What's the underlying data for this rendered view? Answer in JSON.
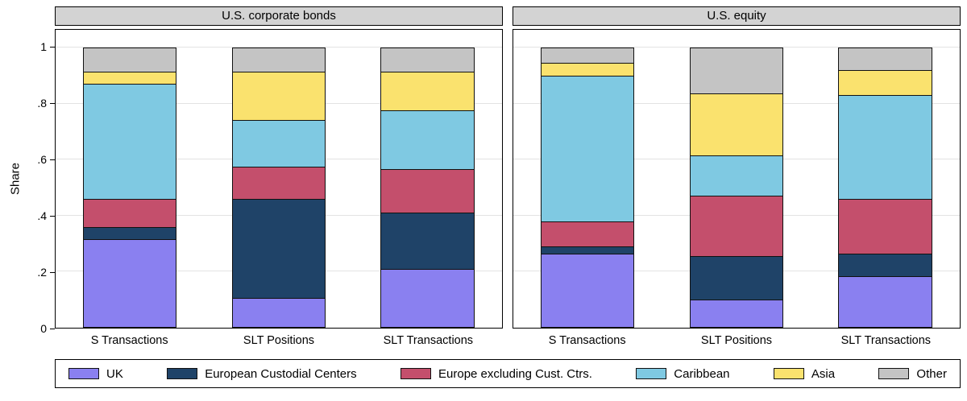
{
  "chart_data": {
    "type": "bar",
    "stacked": true,
    "title": "",
    "ylabel": "Share",
    "xlabel": "",
    "ylim": [
      0,
      1
    ],
    "grid": true,
    "yticks": [
      "0",
      ".2",
      ".4",
      ".6",
      ".8",
      "1"
    ],
    "ytick_values": [
      0,
      0.2,
      0.4,
      0.6,
      0.8,
      1
    ],
    "categories": [
      "S Transactions",
      "SLT Positions",
      "SLT Transactions"
    ],
    "series_names": [
      "UK",
      "European Custodial Centers",
      "Europe excluding Cust. Ctrs.",
      "Caribbean",
      "Asia",
      "Other"
    ],
    "colors": [
      "#8a80f0",
      "#1f4368",
      "#c44f6c",
      "#7fc9e2",
      "#fae26e",
      "#c4c4c4"
    ],
    "panels": [
      {
        "title": "U.S. corporate bonds",
        "series": [
          {
            "name": "UK",
            "values": [
              0.315,
              0.105,
              0.21
            ]
          },
          {
            "name": "European Custodial Centers",
            "values": [
              0.045,
              0.355,
              0.2
            ]
          },
          {
            "name": "Europe excluding Cust. Ctrs.",
            "values": [
              0.1,
              0.115,
              0.155
            ]
          },
          {
            "name": "Caribbean",
            "values": [
              0.41,
              0.165,
              0.21
            ]
          },
          {
            "name": "Asia",
            "values": [
              0.045,
              0.175,
              0.14
            ]
          },
          {
            "name": "Other",
            "values": [
              0.085,
              0.085,
              0.085
            ]
          }
        ]
      },
      {
        "title": "U.S. equity",
        "series": [
          {
            "name": "UK",
            "values": [
              0.265,
              0.1,
              0.185
            ]
          },
          {
            "name": "European Custodial Centers",
            "values": [
              0.025,
              0.155,
              0.08
            ]
          },
          {
            "name": "Europe excluding Cust. Ctrs.",
            "values": [
              0.09,
              0.215,
              0.195
            ]
          },
          {
            "name": "Caribbean",
            "values": [
              0.52,
              0.145,
              0.37
            ]
          },
          {
            "name": "Asia",
            "values": [
              0.045,
              0.22,
              0.09
            ]
          },
          {
            "name": "Other",
            "values": [
              0.055,
              0.165,
              0.08
            ]
          }
        ]
      }
    ],
    "legend": {
      "position": "bottom",
      "entries": [
        "UK",
        "European Custodial Centers",
        "Europe excluding Cust. Ctrs.",
        "Caribbean",
        "Asia",
        "Other"
      ]
    }
  }
}
